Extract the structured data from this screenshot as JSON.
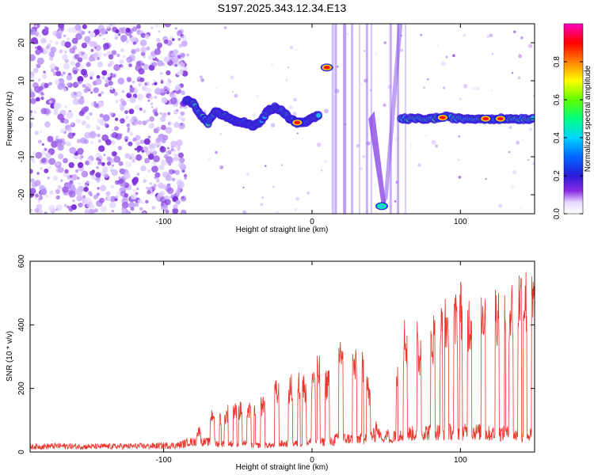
{
  "title": "S197.2025.343.12.34.E13",
  "chart_data": [
    {
      "type": "heatmap",
      "title": "S197.2025.343.12.34.E13",
      "xlabel": "Height of straight line (km)",
      "ylabel": "Frequency (Hz)",
      "xlim": [
        -190,
        150
      ],
      "ylim": [
        -25,
        25
      ],
      "xticks": [
        -100,
        0,
        100
      ],
      "yticks": [
        -20,
        -10,
        0,
        10,
        20
      ],
      "colorbar": {
        "label": "Normalized spectral amplitude",
        "range": [
          0,
          1
        ],
        "ticks": [
          "0.0",
          "0.2",
          "0.4",
          "0.6",
          "0.8"
        ],
        "tick_values": [
          0.0,
          0.2,
          0.4,
          0.6,
          0.8
        ]
      },
      "ridge": {
        "description": "dominant frequency track (Hz) vs height (km)",
        "x": [
          -85,
          -80,
          -75,
          -70,
          -65,
          -60,
          -55,
          -50,
          -45,
          -40,
          -35,
          -30,
          -25,
          -20,
          -15,
          -10,
          -5,
          0,
          5
        ],
        "y": [
          5,
          4,
          1,
          -1,
          2,
          1,
          0,
          -1,
          -1,
          -2,
          -1,
          2,
          3,
          2,
          0,
          -1,
          -1,
          0,
          1
        ]
      },
      "ridge2": {
        "x": [
          60,
          70,
          80,
          90,
          100,
          110,
          120,
          130,
          140,
          150
        ],
        "y": [
          0,
          0,
          0,
          0.5,
          0,
          0,
          0,
          0,
          0,
          0
        ]
      },
      "hotspots": [
        {
          "x": -10,
          "y": -1,
          "amplitude": 0.95
        },
        {
          "x": 10,
          "y": 13.5,
          "amplitude": 0.9
        },
        {
          "x": 47,
          "y": -23,
          "amplitude": 0.4
        },
        {
          "x": 88,
          "y": 0.3,
          "amplitude": 0.9
        },
        {
          "x": 117,
          "y": 0,
          "amplitude": 0.95
        },
        {
          "x": 127,
          "y": 0,
          "amplitude": 0.95
        }
      ]
    },
    {
      "type": "line",
      "xlabel": "Height of straight line (km)",
      "ylabel": "SNR (10 * v/v)",
      "xlim": [
        -190,
        150
      ],
      "ylim": [
        0,
        600
      ],
      "xticks": [
        -100,
        0,
        100
      ],
      "yticks": [
        0,
        200,
        400,
        600
      ],
      "series": [
        {
          "name": "SNR",
          "color": "#e8372c",
          "x": [
            -190,
            -170,
            -150,
            -130,
            -110,
            -90,
            -80,
            -75,
            -70,
            -65,
            -60,
            -55,
            -50,
            -45,
            -40,
            -35,
            -30,
            -25,
            -20,
            -15,
            -10,
            -5,
            0,
            5,
            10,
            15,
            20,
            25,
            30,
            35,
            40,
            45,
            50,
            55,
            58,
            60,
            65,
            70,
            72,
            75,
            80,
            85,
            90,
            95,
            100,
            105,
            110,
            115,
            120,
            125,
            130,
            135,
            140,
            145,
            150
          ],
          "values": [
            20,
            22,
            20,
            21,
            22,
            25,
            40,
            80,
            110,
            140,
            100,
            150,
            130,
            160,
            120,
            150,
            180,
            200,
            190,
            210,
            230,
            220,
            250,
            270,
            230,
            320,
            340,
            300,
            280,
            290,
            150,
            60,
            35,
            40,
            300,
            380,
            370,
            410,
            300,
            440,
            380,
            400,
            430,
            420,
            480,
            440,
            450,
            480,
            490,
            470,
            500,
            480,
            520,
            510,
            500
          ]
        }
      ],
      "lows": [
        30,
        25,
        20,
        25,
        30,
        40,
        50,
        55,
        60,
        60,
        55,
        50
      ]
    }
  ]
}
